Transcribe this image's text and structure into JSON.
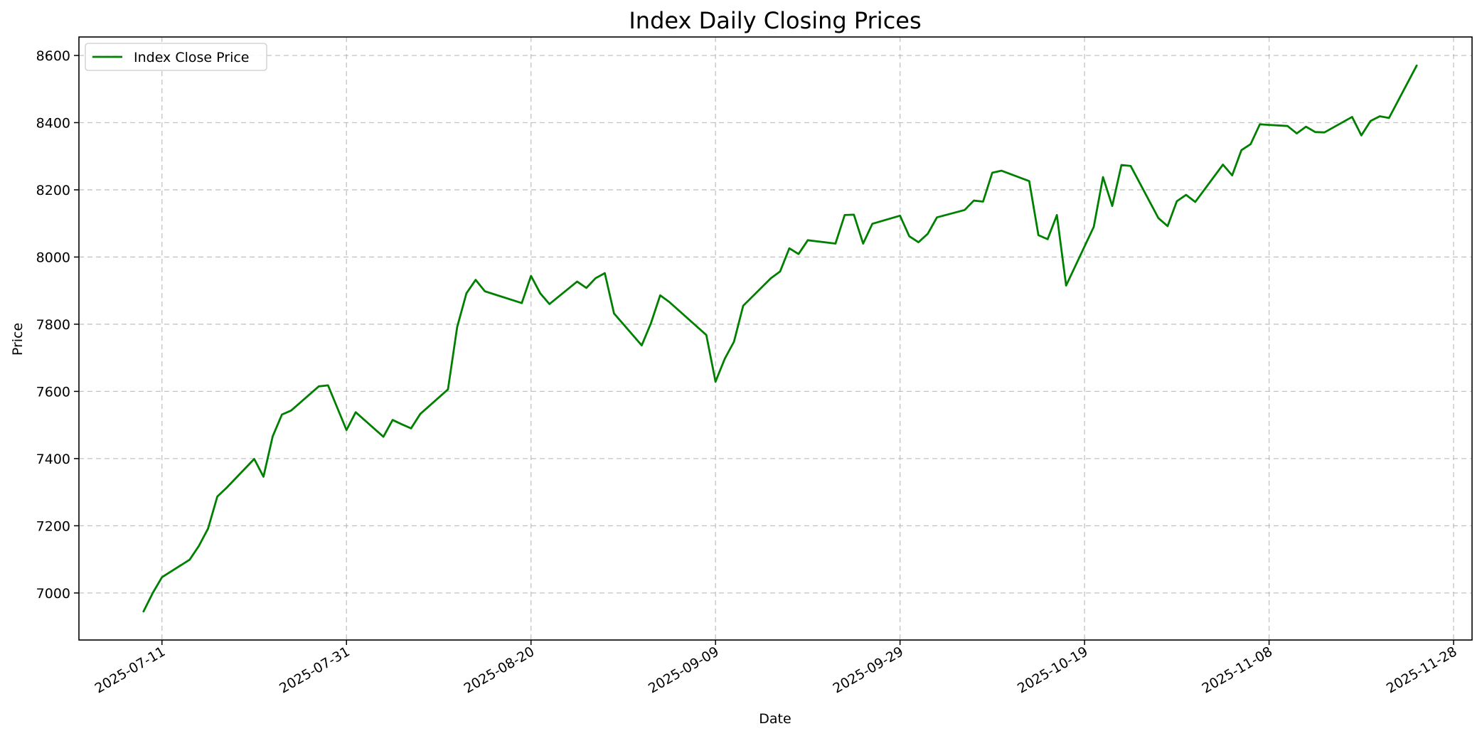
{
  "chart_data": {
    "type": "line",
    "title": "Index Daily Closing Prices",
    "xlabel": "Date",
    "ylabel": "Price",
    "x_ticks": [
      "2025-07-11",
      "2025-07-31",
      "2025-08-20",
      "2025-09-09",
      "2025-09-29",
      "2025-10-19",
      "2025-11-08",
      "2025-11-28"
    ],
    "y_ticks": [
      7000,
      7200,
      7400,
      7600,
      7800,
      8000,
      8200,
      8400,
      8600
    ],
    "xlim": [
      "2025-07-02",
      "2025-11-30"
    ],
    "ylim": [
      6860,
      8655
    ],
    "grid": true,
    "legend": {
      "position": "top-left",
      "entries": [
        "Index Close Price"
      ]
    },
    "series": [
      {
        "name": "Index Close Price",
        "color": "#008000",
        "x": [
          "2025-07-09",
          "2025-07-10",
          "2025-07-11",
          "2025-07-14",
          "2025-07-15",
          "2025-07-16",
          "2025-07-17",
          "2025-07-18",
          "2025-07-21",
          "2025-07-22",
          "2025-07-23",
          "2025-07-24",
          "2025-07-25",
          "2025-07-28",
          "2025-07-29",
          "2025-07-31",
          "2025-08-01",
          "2025-08-04",
          "2025-08-05",
          "2025-08-06",
          "2025-08-07",
          "2025-08-08",
          "2025-08-11",
          "2025-08-12",
          "2025-08-13",
          "2025-08-14",
          "2025-08-15",
          "2025-08-19",
          "2025-08-20",
          "2025-08-21",
          "2025-08-22",
          "2025-08-25",
          "2025-08-26",
          "2025-08-27",
          "2025-08-28",
          "2025-08-29",
          "2025-09-01",
          "2025-09-02",
          "2025-09-03",
          "2025-09-04",
          "2025-09-08",
          "2025-09-09",
          "2025-09-10",
          "2025-09-11",
          "2025-09-12",
          "2025-09-15",
          "2025-09-16",
          "2025-09-17",
          "2025-09-18",
          "2025-09-19",
          "2025-09-22",
          "2025-09-23",
          "2025-09-24",
          "2025-09-25",
          "2025-09-26",
          "2025-09-29",
          "2025-09-30",
          "2025-10-01",
          "2025-10-02",
          "2025-10-03",
          "2025-10-06",
          "2025-10-07",
          "2025-10-08",
          "2025-10-09",
          "2025-10-10",
          "2025-10-13",
          "2025-10-14",
          "2025-10-15",
          "2025-10-16",
          "2025-10-17",
          "2025-10-20",
          "2025-10-21",
          "2025-10-22",
          "2025-10-23",
          "2025-10-24",
          "2025-10-27",
          "2025-10-28",
          "2025-10-29",
          "2025-10-30",
          "2025-10-31",
          "2025-11-03",
          "2025-11-04",
          "2025-11-05",
          "2025-11-06",
          "2025-11-07",
          "2025-11-10",
          "2025-11-11",
          "2025-11-12",
          "2025-11-13",
          "2025-11-14",
          "2025-11-17",
          "2025-11-18",
          "2025-11-19",
          "2025-11-20",
          "2025-11-21",
          "2025-11-24"
        ],
        "values": [
          6945,
          7000,
          7047,
          7099,
          7140,
          7192,
          7287,
          7313,
          7399,
          7346,
          7466,
          7531,
          7543,
          7615,
          7618,
          7485,
          7538,
          7465,
          7515,
          7502,
          7490,
          7533,
          7606,
          7792,
          7892,
          7932,
          7898,
          7863,
          7944,
          7892,
          7860,
          7927,
          7908,
          7937,
          7952,
          7832,
          7737,
          7803,
          7886,
          7866,
          7768,
          7629,
          7697,
          7748,
          7855,
          7937,
          7957,
          8026,
          8009,
          8050,
          8040,
          8125,
          8126,
          8040,
          8099,
          8123,
          8062,
          8044,
          8069,
          8118,
          8140,
          8168,
          8165,
          8251,
          8257,
          8226,
          8065,
          8053,
          8125,
          7915,
          8090,
          8238,
          8152,
          8274,
          8271,
          8116,
          8092,
          8166,
          8185,
          8164,
          8275,
          8243,
          8318,
          8336,
          8395,
          8390,
          8368,
          8388,
          8372,
          8371,
          8417,
          8362,
          8405,
          8419,
          8414,
          8570
        ]
      }
    ]
  }
}
